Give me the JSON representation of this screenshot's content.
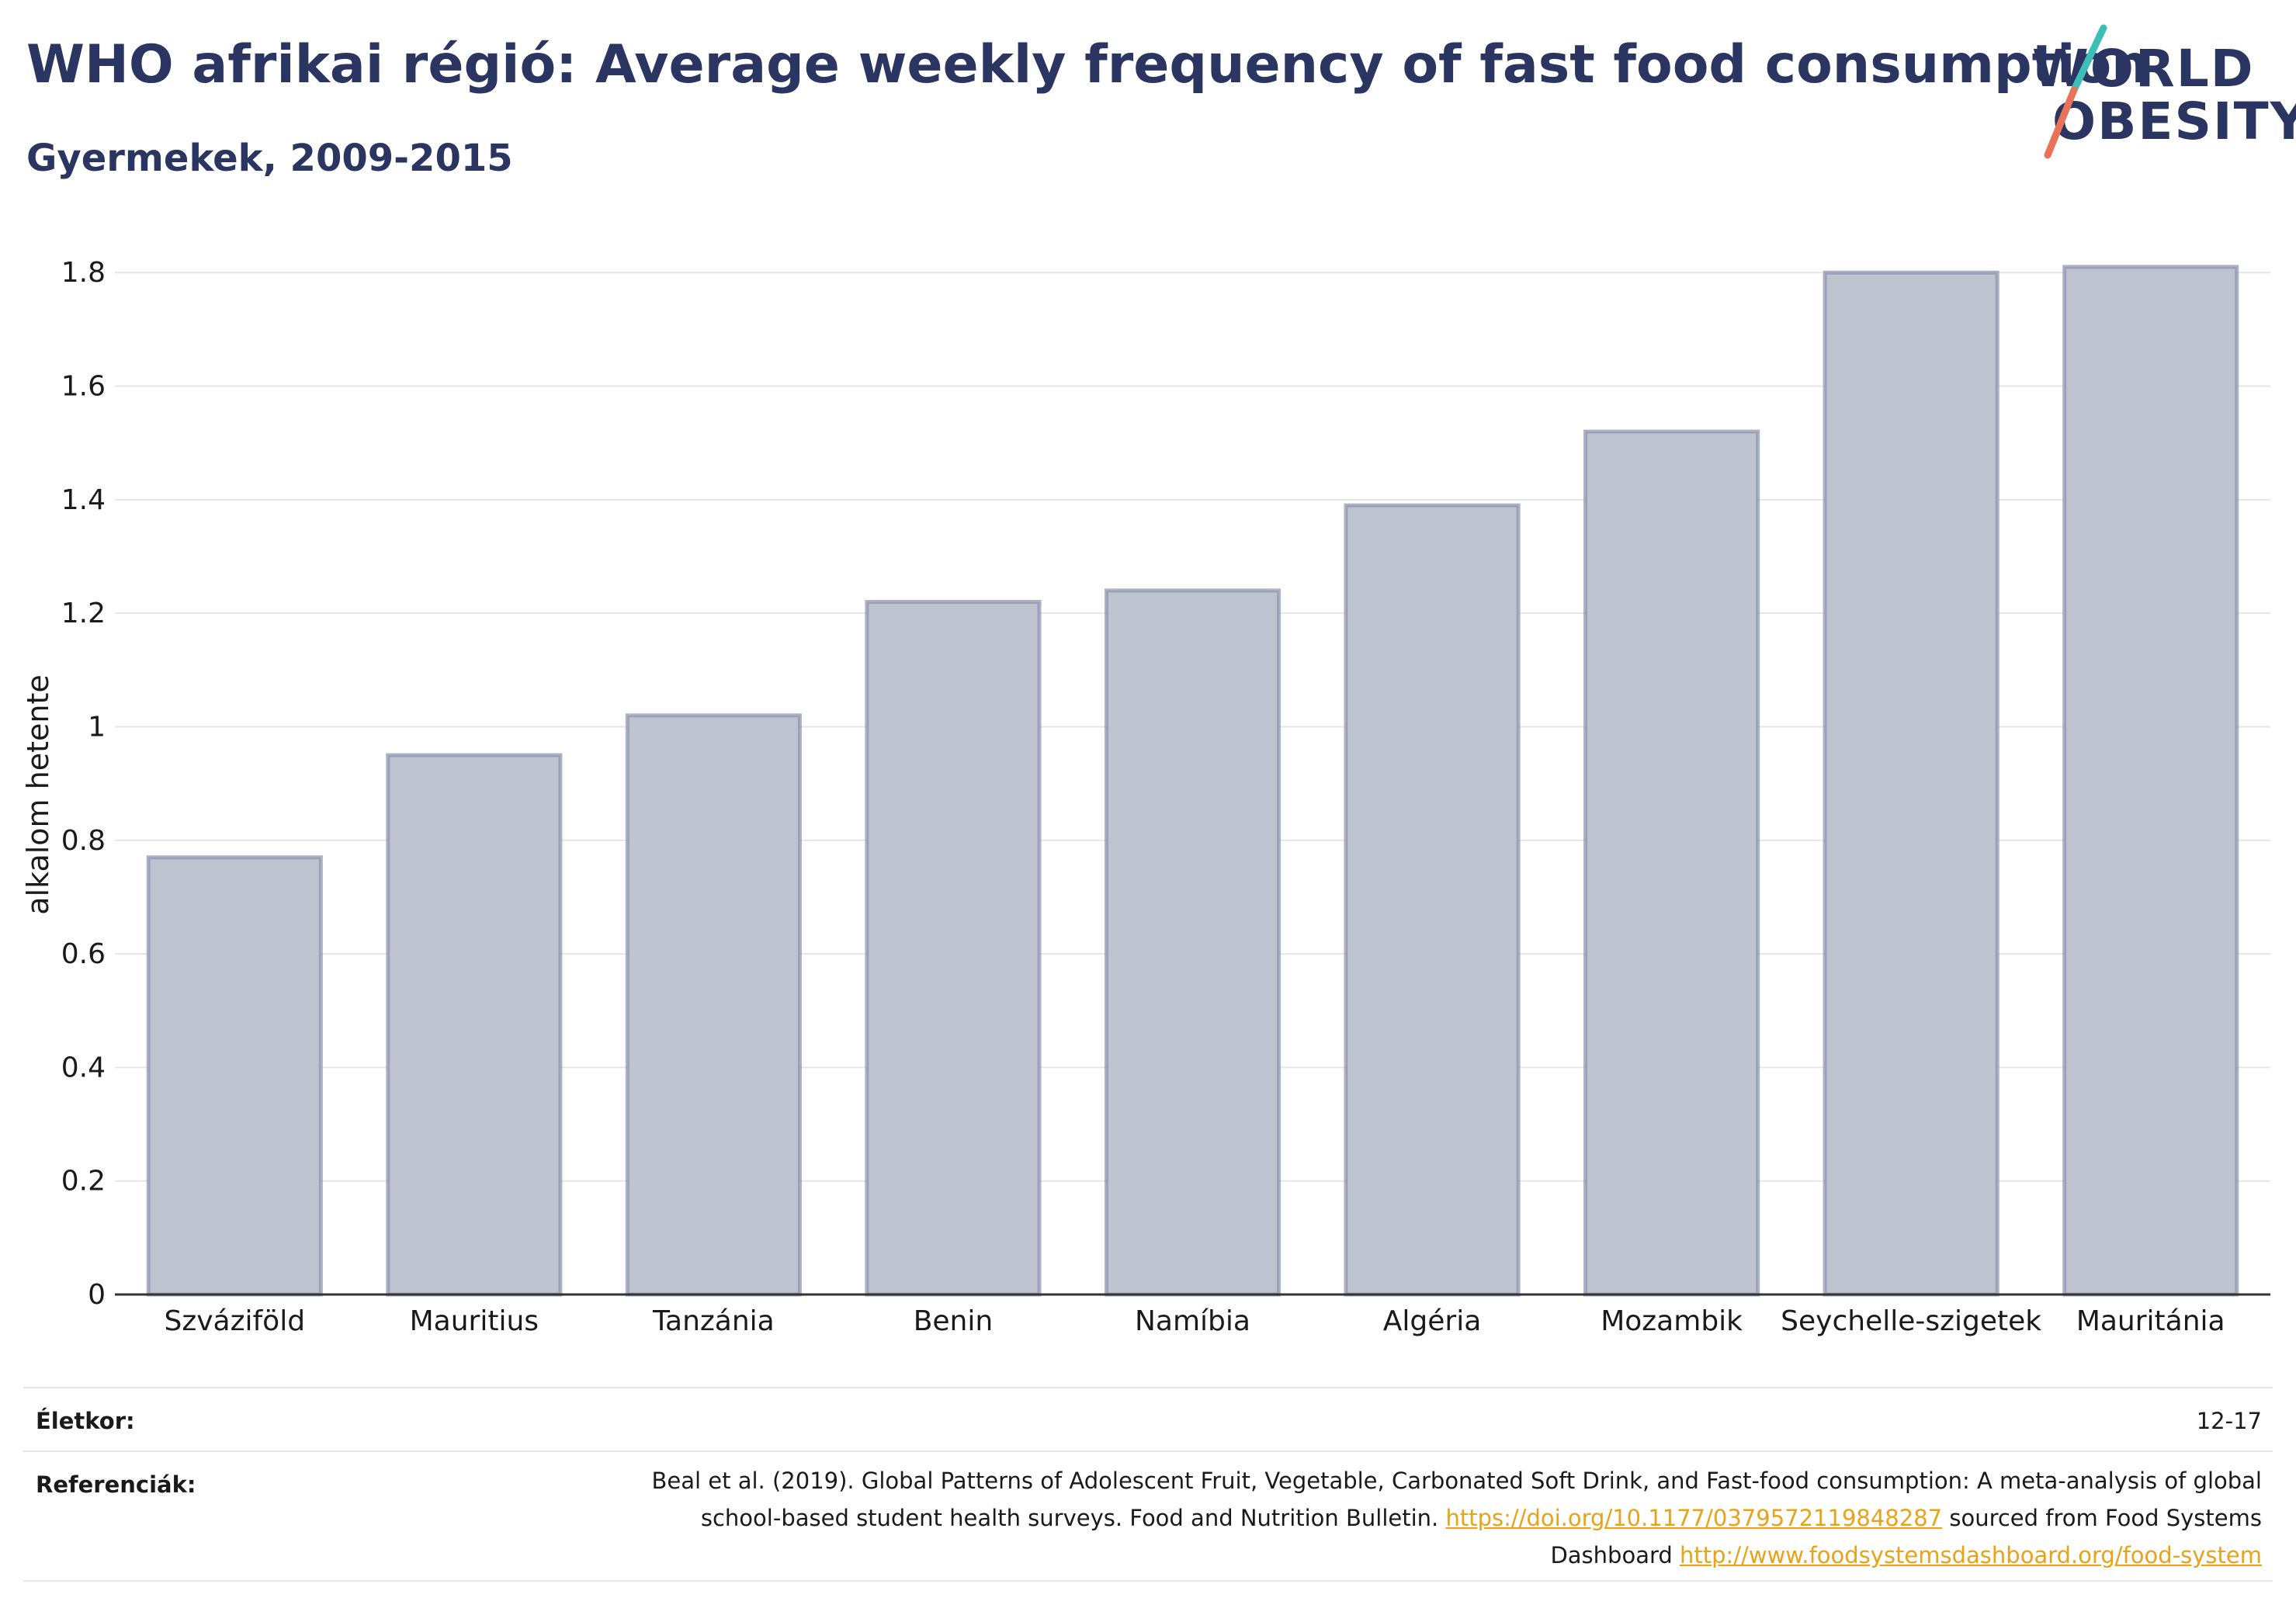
{
  "header": {
    "title": "WHO afrikai régió: Average weekly frequency of fast food consumption",
    "subtitle": "Gyermekek, 2009-2015"
  },
  "logo": {
    "line1": "WORLD",
    "line2": "OBESITY",
    "accent_colors": [
      "#3dbfb8",
      "#e8735a"
    ]
  },
  "chart_data": {
    "type": "bar",
    "categories": [
      "Szváziföld",
      "Mauritius",
      "Tanzánia",
      "Benin",
      "Namíbia",
      "Algéria",
      "Mozambik",
      "Seychelle-szigetek",
      "Mauritánia"
    ],
    "values": [
      0.77,
      0.95,
      1.02,
      1.22,
      1.24,
      1.39,
      1.52,
      1.8,
      1.81
    ],
    "ylabel": "alkalom hetente",
    "xlabel": "",
    "ylim": [
      0,
      1.87
    ],
    "yticks": [
      0,
      0.2,
      0.4,
      0.6,
      0.8,
      1,
      1.2,
      1.4,
      1.6,
      1.8
    ],
    "ytick_labels": [
      "0",
      "0.2",
      "0.4",
      "0.6",
      "0.8",
      "1",
      "1.2",
      "1.4",
      "1.6",
      "1.8"
    ],
    "grid": true,
    "bar_fill": "#bfc3cf",
    "bar_stroke": "#8a91ab"
  },
  "footer": {
    "age_label": "Életkor:",
    "age_value": "12-17",
    "ref_label": "Referenciák:",
    "ref_text_1": "Beal et al. (2019). Global Patterns of Adolescent Fruit, Vegetable, Carbonated Soft Drink, and Fast-food consumption: A meta-analysis of global school-based student health surveys. Food and Nutrition Bulletin.",
    "ref_link_1": "https://doi.org/10.1177/0379572119848287",
    "ref_text_2": "sourced from Food Systems Dashboard",
    "ref_link_2": "http://www.foodsystemsdashboard.org/food-system"
  }
}
